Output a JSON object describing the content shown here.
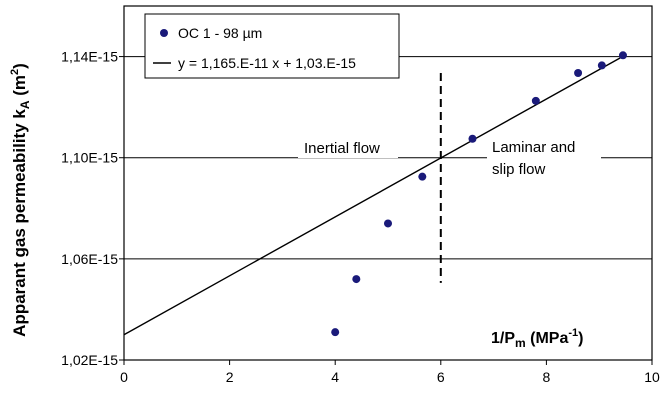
{
  "chart_data": {
    "type": "scatter",
    "xlabel_main": "1/P",
    "xlabel_sub": "m",
    "xlabel_unit_open": " (MPa",
    "xlabel_sup": "-1",
    "xlabel_unit_close": ")",
    "ylabel_main": "Apparant gas permeability k",
    "ylabel_sub": "A",
    "ylabel_unit_open": " (m",
    "ylabel_sup": "2",
    "ylabel_unit_close": ")",
    "xlim": [
      0,
      10
    ],
    "ylim": [
      1.02e-15,
      1.16e-15
    ],
    "xticks": [
      0,
      2,
      4,
      6,
      8,
      10
    ],
    "xtick_labels": [
      "0",
      "2",
      "4",
      "6",
      "8",
      "10"
    ],
    "yticks": [
      1.02e-15,
      1.06e-15,
      1.1e-15,
      1.14e-15
    ],
    "ytick_labels": [
      "1,02E-15",
      "1,06E-15",
      "1,10E-15",
      "1,14E-15"
    ],
    "gridlines_y": true,
    "series": [
      {
        "name": "OC 1 - 98 µm",
        "kind": "markers",
        "color": "#1a1a7a",
        "x": [
          4.0,
          4.4,
          5.0,
          5.65,
          6.6,
          7.8,
          8.6,
          9.05,
          9.45
        ],
        "y": [
          1.031e-15,
          1.052e-15,
          1.074e-15,
          1.0925e-15,
          1.1075e-15,
          1.1225e-15,
          1.1335e-15,
          1.1365e-15,
          1.1405e-15
        ]
      },
      {
        "name": "y = 1,165.E-11 x  + 1,03.E-15",
        "kind": "line",
        "color": "#000000",
        "slope": 1.165e-17,
        "intercept": 1.03e-15,
        "x_range": [
          0,
          9.45
        ]
      }
    ],
    "divider_x": 6,
    "divider_y_range": [
      1.0505e-15,
      1.1335e-15
    ],
    "annotations": {
      "left": "Inertial flow",
      "right_line1": "Laminar and",
      "right_line2": "slip flow"
    },
    "legend_position": "top-left"
  }
}
